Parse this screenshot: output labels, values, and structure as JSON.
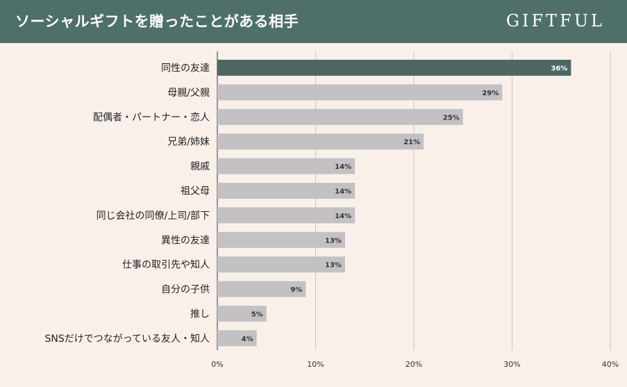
{
  "header": {
    "title": "ソーシャルギフトを贈ったことがある相手",
    "brand": "GIFTFUL"
  },
  "colors": {
    "header_bg": "#4f706a",
    "highlight_bar": "#4d6863",
    "bar": "#c3c1c4",
    "background": "#f9f0ea",
    "grid": "#c9c3c0"
  },
  "chart_data": {
    "type": "bar",
    "orientation": "horizontal",
    "title": "ソーシャルギフトを贈ったことがある相手",
    "categories": [
      "同性の友達",
      "母親/父親",
      "配偶者・パートナー・恋人",
      "兄弟/姉妹",
      "親戚",
      "祖父母",
      "同じ会社の同僚/上司/部下",
      "異性の友達",
      "仕事の取引先や知人",
      "自分の子供",
      "推し",
      "SNSだけでつながっている友人・知人"
    ],
    "values": [
      36,
      29,
      25,
      21,
      14,
      14,
      14,
      13,
      13,
      9,
      5,
      4
    ],
    "value_labels": [
      "36%",
      "29%",
      "25%",
      "21%",
      "14%",
      "14%",
      "14%",
      "13%",
      "13%",
      "9%",
      "5%",
      "4%"
    ],
    "highlight_index": 0,
    "xlim": [
      0,
      40
    ],
    "xticks": [
      0,
      10,
      20,
      30,
      40
    ],
    "xtick_labels": [
      "0%",
      "10%",
      "20%",
      "30%",
      "40%"
    ],
    "xlabel": "",
    "ylabel": "",
    "grid": true
  }
}
